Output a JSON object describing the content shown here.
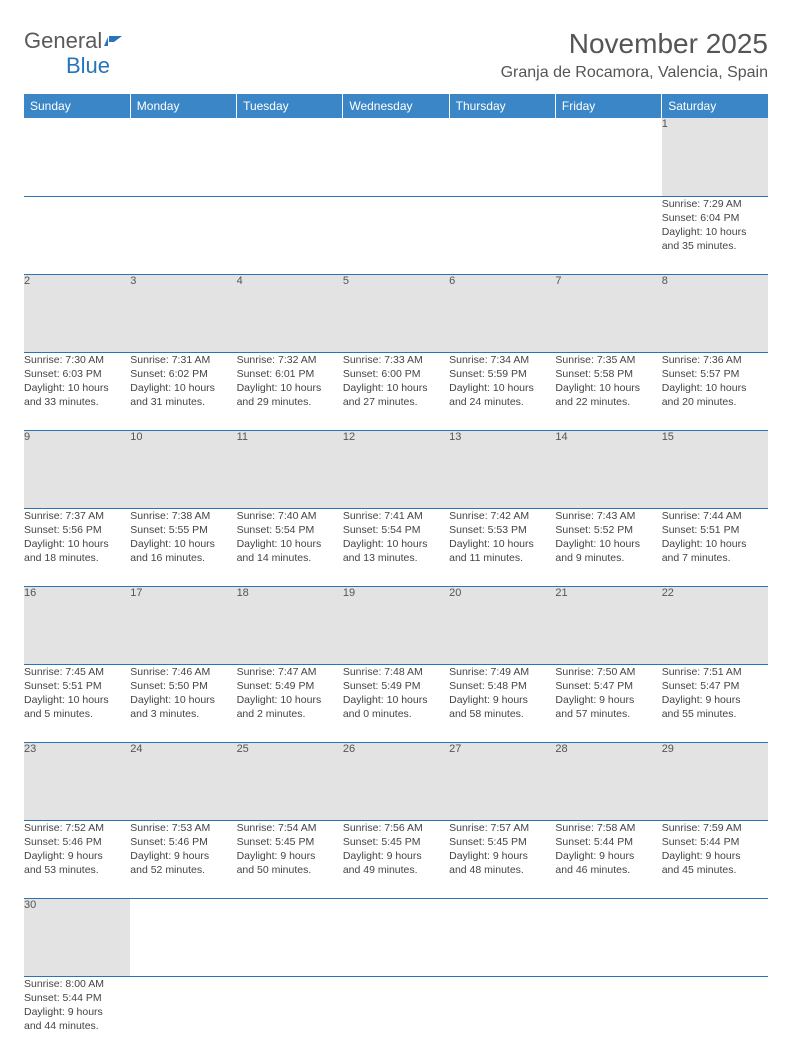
{
  "logo": {
    "text1": "General",
    "text2": "Blue"
  },
  "title": "November 2025",
  "location": "Granja de Rocamora, Valencia, Spain",
  "colors": {
    "header_bg": "#3b86c6",
    "header_text": "#ffffff",
    "daynum_bg": "#e3e3e3",
    "border": "#2874b8",
    "logo_gray": "#5a5a5a",
    "logo_blue": "#2874b8",
    "text": "#444444"
  },
  "weekdays": [
    "Sunday",
    "Monday",
    "Tuesday",
    "Wednesday",
    "Thursday",
    "Friday",
    "Saturday"
  ],
  "weeks": [
    [
      {
        "blank": true
      },
      {
        "blank": true
      },
      {
        "blank": true
      },
      {
        "blank": true
      },
      {
        "blank": true
      },
      {
        "blank": true
      },
      {
        "n": "1",
        "sr": "7:29 AM",
        "ss": "6:04 PM",
        "dl": "10 hours and 35 minutes."
      }
    ],
    [
      {
        "n": "2",
        "sr": "7:30 AM",
        "ss": "6:03 PM",
        "dl": "10 hours and 33 minutes."
      },
      {
        "n": "3",
        "sr": "7:31 AM",
        "ss": "6:02 PM",
        "dl": "10 hours and 31 minutes."
      },
      {
        "n": "4",
        "sr": "7:32 AM",
        "ss": "6:01 PM",
        "dl": "10 hours and 29 minutes."
      },
      {
        "n": "5",
        "sr": "7:33 AM",
        "ss": "6:00 PM",
        "dl": "10 hours and 27 minutes."
      },
      {
        "n": "6",
        "sr": "7:34 AM",
        "ss": "5:59 PM",
        "dl": "10 hours and 24 minutes."
      },
      {
        "n": "7",
        "sr": "7:35 AM",
        "ss": "5:58 PM",
        "dl": "10 hours and 22 minutes."
      },
      {
        "n": "8",
        "sr": "7:36 AM",
        "ss": "5:57 PM",
        "dl": "10 hours and 20 minutes."
      }
    ],
    [
      {
        "n": "9",
        "sr": "7:37 AM",
        "ss": "5:56 PM",
        "dl": "10 hours and 18 minutes."
      },
      {
        "n": "10",
        "sr": "7:38 AM",
        "ss": "5:55 PM",
        "dl": "10 hours and 16 minutes."
      },
      {
        "n": "11",
        "sr": "7:40 AM",
        "ss": "5:54 PM",
        "dl": "10 hours and 14 minutes."
      },
      {
        "n": "12",
        "sr": "7:41 AM",
        "ss": "5:54 PM",
        "dl": "10 hours and 13 minutes."
      },
      {
        "n": "13",
        "sr": "7:42 AM",
        "ss": "5:53 PM",
        "dl": "10 hours and 11 minutes."
      },
      {
        "n": "14",
        "sr": "7:43 AM",
        "ss": "5:52 PM",
        "dl": "10 hours and 9 minutes."
      },
      {
        "n": "15",
        "sr": "7:44 AM",
        "ss": "5:51 PM",
        "dl": "10 hours and 7 minutes."
      }
    ],
    [
      {
        "n": "16",
        "sr": "7:45 AM",
        "ss": "5:51 PM",
        "dl": "10 hours and 5 minutes."
      },
      {
        "n": "17",
        "sr": "7:46 AM",
        "ss": "5:50 PM",
        "dl": "10 hours and 3 minutes."
      },
      {
        "n": "18",
        "sr": "7:47 AM",
        "ss": "5:49 PM",
        "dl": "10 hours and 2 minutes."
      },
      {
        "n": "19",
        "sr": "7:48 AM",
        "ss": "5:49 PM",
        "dl": "10 hours and 0 minutes."
      },
      {
        "n": "20",
        "sr": "7:49 AM",
        "ss": "5:48 PM",
        "dl": "9 hours and 58 minutes."
      },
      {
        "n": "21",
        "sr": "7:50 AM",
        "ss": "5:47 PM",
        "dl": "9 hours and 57 minutes."
      },
      {
        "n": "22",
        "sr": "7:51 AM",
        "ss": "5:47 PM",
        "dl": "9 hours and 55 minutes."
      }
    ],
    [
      {
        "n": "23",
        "sr": "7:52 AM",
        "ss": "5:46 PM",
        "dl": "9 hours and 53 minutes."
      },
      {
        "n": "24",
        "sr": "7:53 AM",
        "ss": "5:46 PM",
        "dl": "9 hours and 52 minutes."
      },
      {
        "n": "25",
        "sr": "7:54 AM",
        "ss": "5:45 PM",
        "dl": "9 hours and 50 minutes."
      },
      {
        "n": "26",
        "sr": "7:56 AM",
        "ss": "5:45 PM",
        "dl": "9 hours and 49 minutes."
      },
      {
        "n": "27",
        "sr": "7:57 AM",
        "ss": "5:45 PM",
        "dl": "9 hours and 48 minutes."
      },
      {
        "n": "28",
        "sr": "7:58 AM",
        "ss": "5:44 PM",
        "dl": "9 hours and 46 minutes."
      },
      {
        "n": "29",
        "sr": "7:59 AM",
        "ss": "5:44 PM",
        "dl": "9 hours and 45 minutes."
      }
    ],
    [
      {
        "n": "30",
        "sr": "8:00 AM",
        "ss": "5:44 PM",
        "dl": "9 hours and 44 minutes."
      },
      {
        "blank": true
      },
      {
        "blank": true
      },
      {
        "blank": true
      },
      {
        "blank": true
      },
      {
        "blank": true
      },
      {
        "blank": true
      }
    ]
  ]
}
